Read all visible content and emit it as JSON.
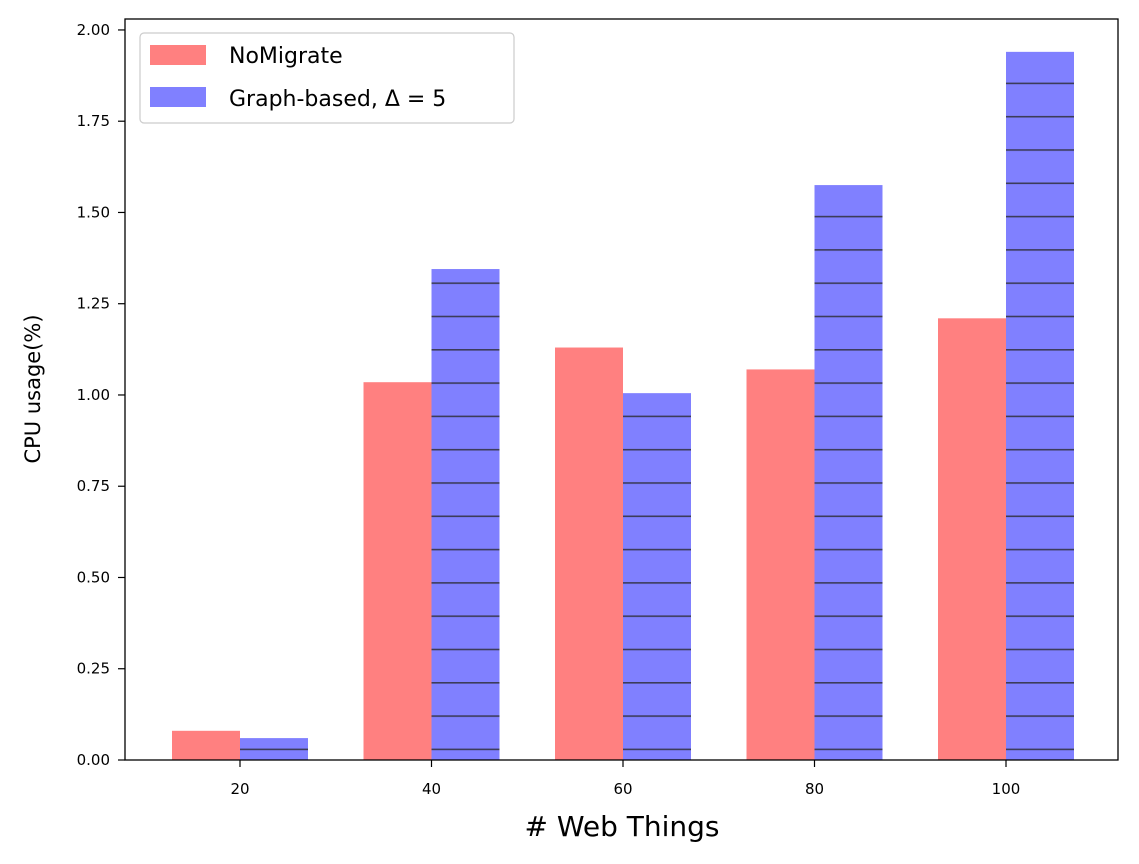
{
  "chart_data": {
    "type": "bar",
    "title": "",
    "xlabel": "# Web Things",
    "ylabel": "CPU usage(%)",
    "categories": [
      "20",
      "40",
      "60",
      "80",
      "100"
    ],
    "ylim": [
      0,
      2.03
    ],
    "yticks": [
      "0.00",
      "0.25",
      "0.50",
      "0.75",
      "1.00",
      "1.25",
      "1.50",
      "1.75",
      "2.00"
    ],
    "grid": false,
    "legend_position": "top-left",
    "series": [
      {
        "name": "NoMigrate",
        "values": [
          0.08,
          1.035,
          1.13,
          1.07,
          1.21
        ],
        "color": "#ff8080",
        "hatch": "none"
      },
      {
        "name": "Graph-based, Δ = 5",
        "values": [
          0.06,
          1.345,
          1.005,
          1.575,
          1.94
        ],
        "color": "#8080ff",
        "hatch": "horizontal"
      }
    ]
  }
}
